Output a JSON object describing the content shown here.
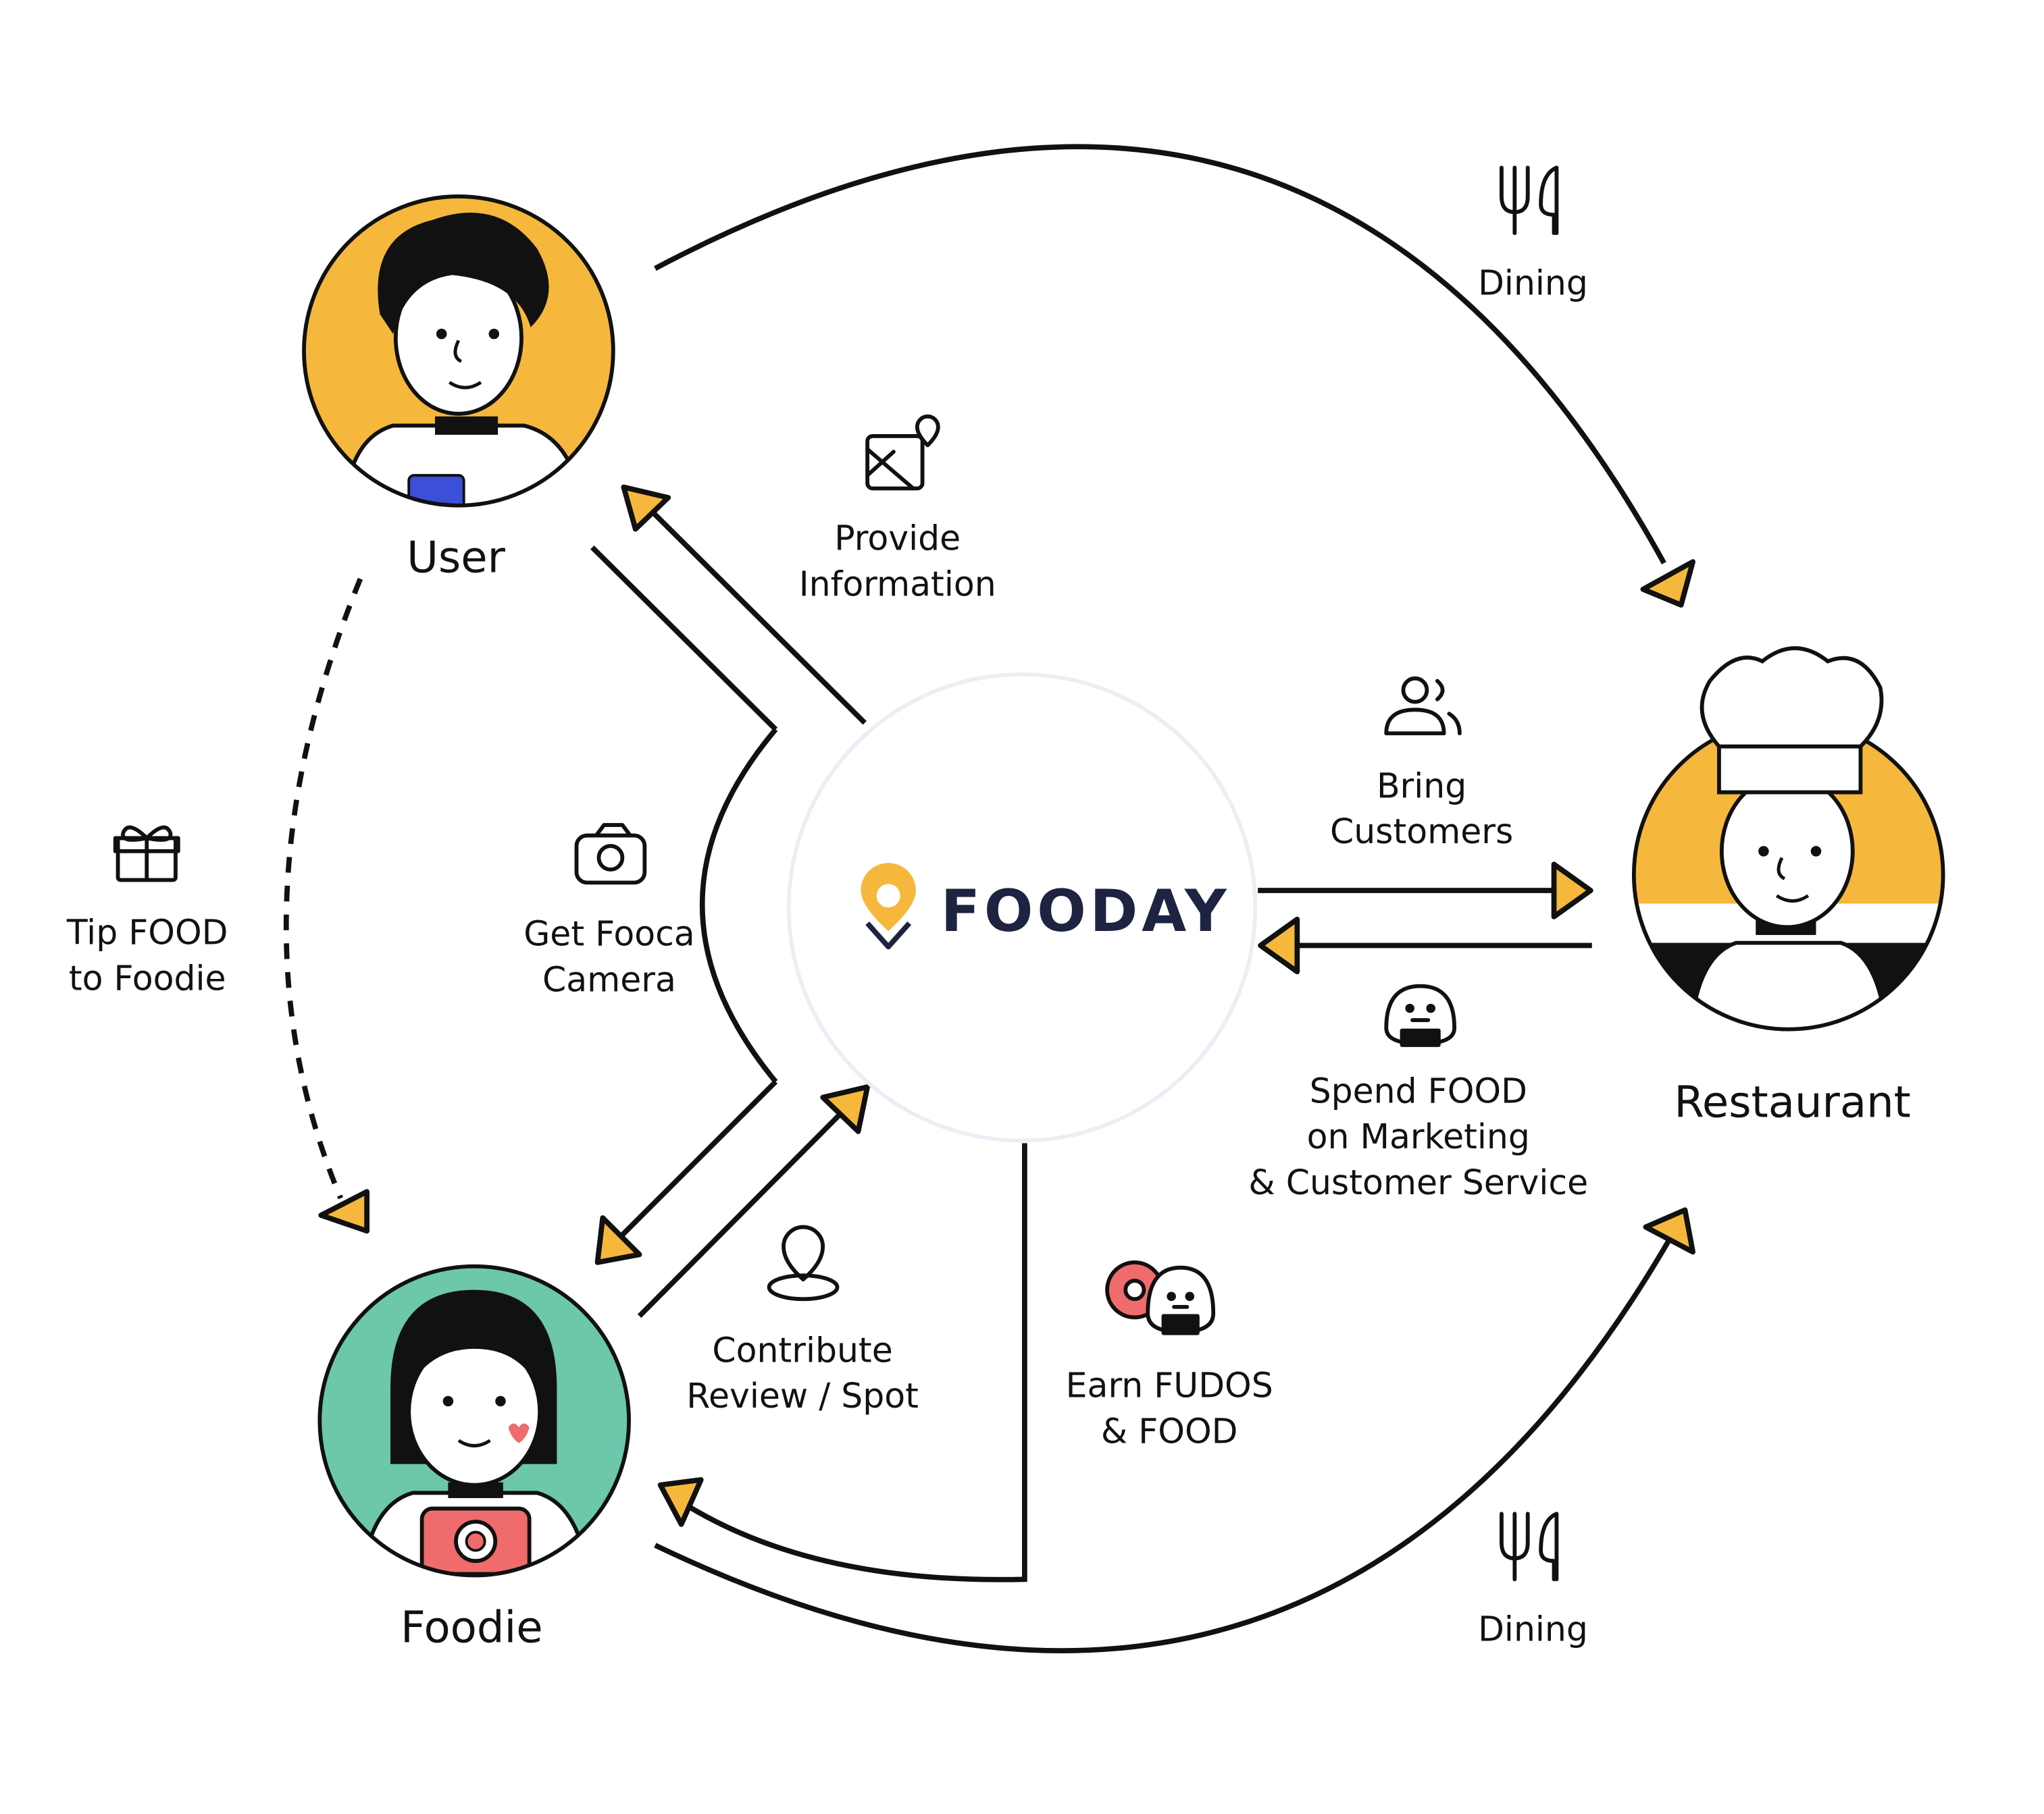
{
  "brand": {
    "name": "FOODAY"
  },
  "colors": {
    "accent": "#f5b83d",
    "ink": "#111111",
    "foodie_bg": "#6cc7ab",
    "brand_navy": "#1d2340"
  },
  "nodes": {
    "user": "User",
    "foodie": "Foodie",
    "restaurant": "Restaurant"
  },
  "edges": {
    "dining_top": {
      "label": "Dining",
      "icon": "fork-knife-icon"
    },
    "provide_information": {
      "label": "Provide\nInformation",
      "icon": "map-pin-image-icon"
    },
    "bring_customers": {
      "label": "Bring\nCustomers",
      "icon": "users-icon"
    },
    "tip_food": {
      "label": "Tip FOOD\nto Foodie",
      "icon": "gift-icon"
    },
    "get_camera": {
      "label": "Get Fooca\nCamera",
      "icon": "camera-icon"
    },
    "spend_food": {
      "label": "Spend FOOD\non Marketing\n& Customer Service",
      "icon": "onigiri-icon"
    },
    "contribute_review": {
      "label": "Contribute\nReview / Spot",
      "icon": "location-pin-icon"
    },
    "earn_fudos": {
      "label": "Earn FUDOS\n& FOOD",
      "icon": "donut-onigiri-icon"
    },
    "dining_bottom": {
      "label": "Dining",
      "icon": "fork-knife-icon"
    }
  }
}
